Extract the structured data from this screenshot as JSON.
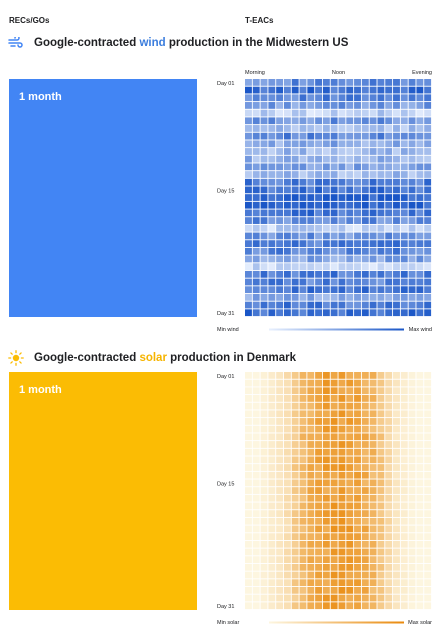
{
  "headers": {
    "left": "RECs/GOs",
    "right": "T-EACs"
  },
  "wind": {
    "title_pre": "Google-contracted ",
    "title_hl": "wind",
    "title_post": " production in the Midwestern US",
    "block_label": "1 month",
    "icon": "wind-icon",
    "block_color": "#4285f4"
  },
  "solar": {
    "title_pre": "Google-contracted ",
    "title_hl": "solar",
    "title_post": " production in Denmark",
    "block_label": "1 month",
    "icon": "sun-icon",
    "block_color": "#fbbc04"
  },
  "chart_data": [
    {
      "type": "heatmap",
      "title": "Google-contracted wind production in the Midwestern US",
      "x_labels": [
        "Morning",
        "Noon",
        "Evening"
      ],
      "y_labels": [
        "Day 01",
        "Day 15",
        "Day 31"
      ],
      "legend": {
        "min": "Min wind",
        "max": "Max wind"
      },
      "colors": [
        "#e8f0fe",
        "#1a56c7"
      ],
      "n_cols": 24,
      "day_levels": [
        0.65,
        0.85,
        0.7,
        0.55,
        0.2,
        0.6,
        0.3,
        0.7,
        0.45,
        0.35,
        0.4,
        0.5,
        0.35,
        0.75,
        0.8,
        0.9,
        0.95,
        0.8,
        0.65,
        0.2,
        0.6,
        0.75,
        0.7,
        0.5,
        0.15,
        0.75,
        0.7,
        0.8,
        0.45,
        0.75,
        0.85
      ]
    },
    {
      "type": "heatmap",
      "title": "Google-contracted solar production in Denmark",
      "x_labels": [],
      "y_labels": [
        "Day 01",
        "Day 15",
        "Day 31"
      ],
      "legend": {
        "min": "Min solar",
        "max": "Max solar"
      },
      "colors": [
        "#fdf6e0",
        "#e9890c"
      ],
      "n_cols": 24,
      "hour_levels": [
        0,
        0,
        0.05,
        0.1,
        0.15,
        0.25,
        0.45,
        0.62,
        0.72,
        0.8,
        0.85,
        0.88,
        0.88,
        0.86,
        0.82,
        0.75,
        0.65,
        0.5,
        0.3,
        0.15,
        0.08,
        0.03,
        0,
        0
      ]
    }
  ]
}
